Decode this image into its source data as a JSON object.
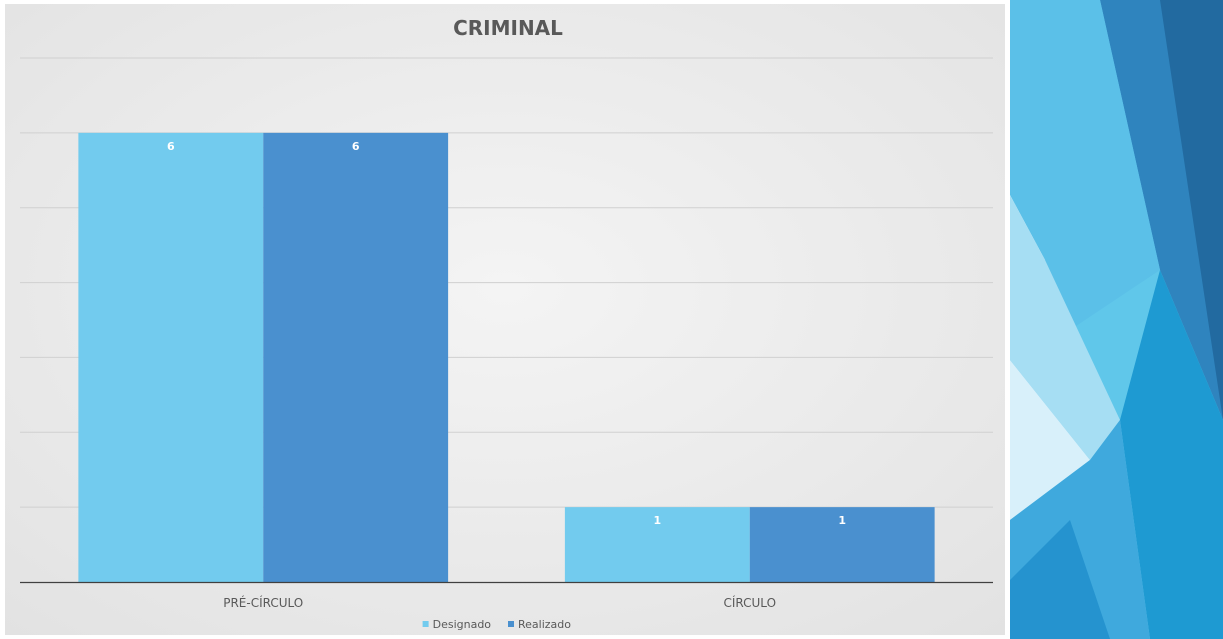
{
  "chart_data": {
    "type": "bar",
    "title": "CRIMINAL",
    "categories": [
      "PRÉ-CÍRCULO",
      "CÍRCULO"
    ],
    "series": [
      {
        "name": "Designado",
        "values": [
          6,
          1
        ],
        "color": "#72CBEE"
      },
      {
        "name": "Realizado",
        "values": [
          6,
          1
        ],
        "color": "#4A90CF"
      }
    ],
    "ylim": [
      0,
      7
    ],
    "gridlines": true,
    "legend_position": "bottom",
    "data_labels": true
  },
  "theme": {
    "plot_background_light": "#F4F4F4",
    "plot_background_dark": "#E2E2E2",
    "gridline_color": "#D0D0D0",
    "axis_color": "#404040",
    "decor_colors": [
      "#60C7EA",
      "#4FAEDC",
      "#2F84BE",
      "#226AA0",
      "#1E9AD2",
      "#A6DEF3"
    ]
  }
}
